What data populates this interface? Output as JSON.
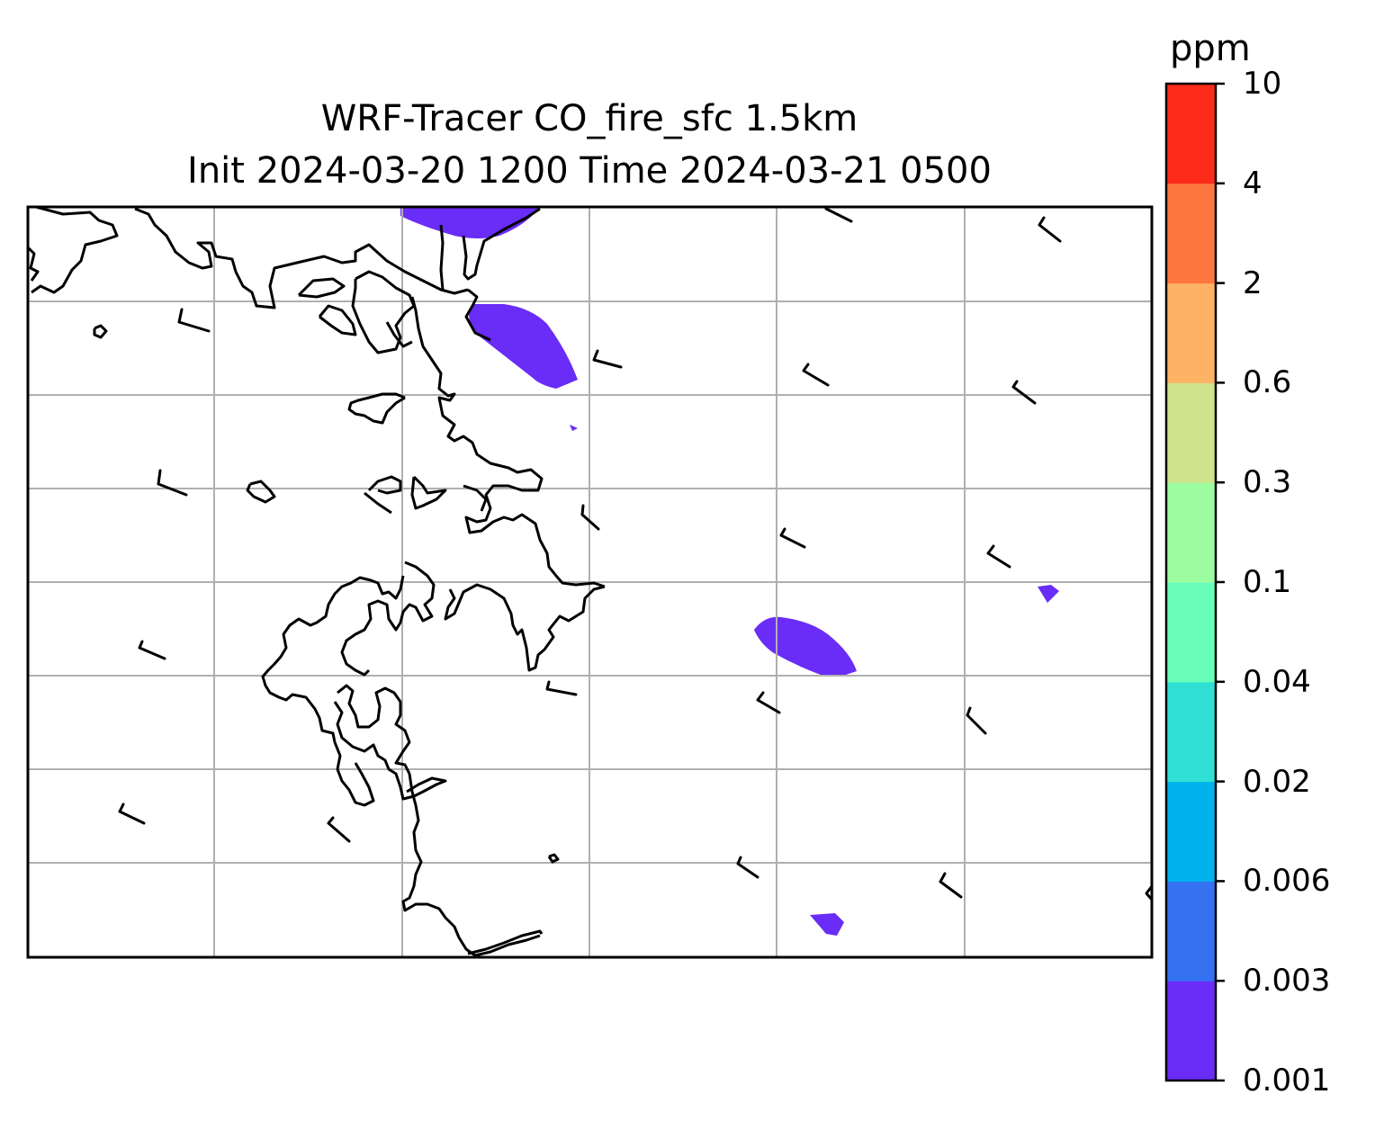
{
  "title_line1": "WRF-Tracer CO_fire_sfc 1.5km",
  "title_line2": "Init 2024-03-20 1200 Time 2024-03-21 0500",
  "colorbar": {
    "unit": "ppm",
    "levels": [
      "0.001",
      "0.003",
      "0.006",
      "0.02",
      "0.04",
      "0.1",
      "0.3",
      "0.6",
      "2",
      "4",
      "10"
    ],
    "colors": [
      "#6a2cf7",
      "#3472f2",
      "#00b3ec",
      "#30e0d5",
      "#68feba",
      "#9cfda0",
      "#cde48a",
      "#fdb266",
      "#fe7740",
      "#fd2b1a"
    ]
  },
  "map": {
    "colors": {
      "tracer_fill": "#6a2cf7",
      "coastline": "#000000",
      "gridline": "#b0b0b0",
      "barb": "#000000"
    },
    "plumes_level": "0.001-0.003 ppm",
    "wind_barbs": true,
    "gridlines": true
  }
}
